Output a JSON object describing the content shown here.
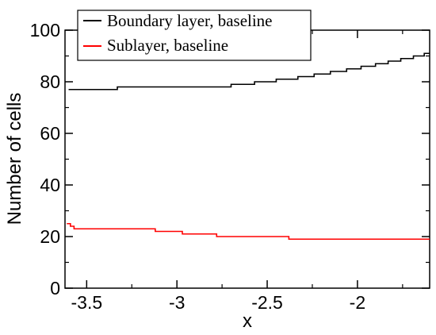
{
  "chart_data": {
    "type": "line",
    "xlabel": "x",
    "ylabel": "Number of cells",
    "xlim": [
      -3.62,
      -1.6
    ],
    "ylim": [
      0,
      100
    ],
    "x_ticks": [
      -3.5,
      -3,
      -2.5,
      -2
    ],
    "x_tick_labels": [
      "-3.5",
      "-3",
      "-2.5",
      "-2"
    ],
    "y_ticks": [
      0,
      20,
      40,
      60,
      80,
      100
    ],
    "y_tick_labels": [
      "0",
      "20",
      "40",
      "60",
      "80",
      "100"
    ],
    "grid": false,
    "legend_position": "top-center",
    "series": [
      {
        "name": "Boundary layer, baseline",
        "color": "#000000",
        "step": true,
        "points": [
          [
            -3.6,
            77
          ],
          [
            -3.33,
            78
          ],
          [
            -2.7,
            79
          ],
          [
            -2.57,
            80
          ],
          [
            -2.45,
            81
          ],
          [
            -2.33,
            82
          ],
          [
            -2.24,
            83
          ],
          [
            -2.15,
            84
          ],
          [
            -2.06,
            85
          ],
          [
            -1.98,
            86
          ],
          [
            -1.9,
            87
          ],
          [
            -1.83,
            88
          ],
          [
            -1.76,
            89
          ],
          [
            -1.69,
            90
          ],
          [
            -1.63,
            91
          ],
          [
            -1.6,
            91
          ]
        ]
      },
      {
        "name": "Sublayer, baseline",
        "color": "#ff0000",
        "step": true,
        "points": [
          [
            -3.61,
            25
          ],
          [
            -3.59,
            24
          ],
          [
            -3.57,
            23
          ],
          [
            -3.12,
            22
          ],
          [
            -2.97,
            21
          ],
          [
            -2.78,
            20
          ],
          [
            -2.38,
            19
          ],
          [
            -1.6,
            19
          ]
        ]
      }
    ]
  }
}
